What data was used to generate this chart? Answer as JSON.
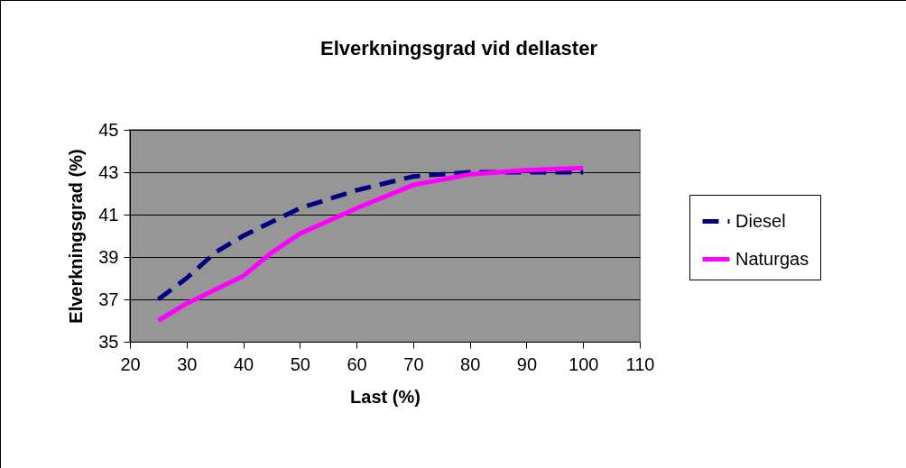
{
  "chart_data": {
    "type": "line",
    "title": "Elverkningsgrad vid dellaster",
    "xlabel": "Last (%)",
    "ylabel": "Elverkningsgrad (%)",
    "xlim": [
      20,
      110
    ],
    "xticks": [
      20,
      30,
      40,
      50,
      60,
      70,
      80,
      90,
      100,
      110
    ],
    "ylim": [
      35,
      45
    ],
    "yticks": [
      35,
      37,
      39,
      41,
      43,
      45
    ],
    "grid": "y",
    "legend": "right",
    "marker": "none",
    "series": [
      {
        "name": "Diesel",
        "color": "#000080",
        "line_style": "dashed",
        "x": [
          25,
          30,
          35,
          40,
          50,
          60,
          70,
          80,
          90,
          100
        ],
        "values": [
          37.0,
          38.0,
          39.2,
          40.0,
          41.3,
          42.15,
          42.8,
          43.0,
          43.0,
          43.0
        ]
      },
      {
        "name": "Naturgas",
        "color": "#ff00ff",
        "line_style": "solid",
        "x": [
          25,
          30,
          40,
          45,
          50,
          60,
          70,
          80,
          90,
          100
        ],
        "values": [
          36.0,
          36.8,
          38.1,
          39.2,
          40.1,
          41.3,
          42.4,
          42.9,
          43.1,
          43.2
        ]
      }
    ]
  }
}
